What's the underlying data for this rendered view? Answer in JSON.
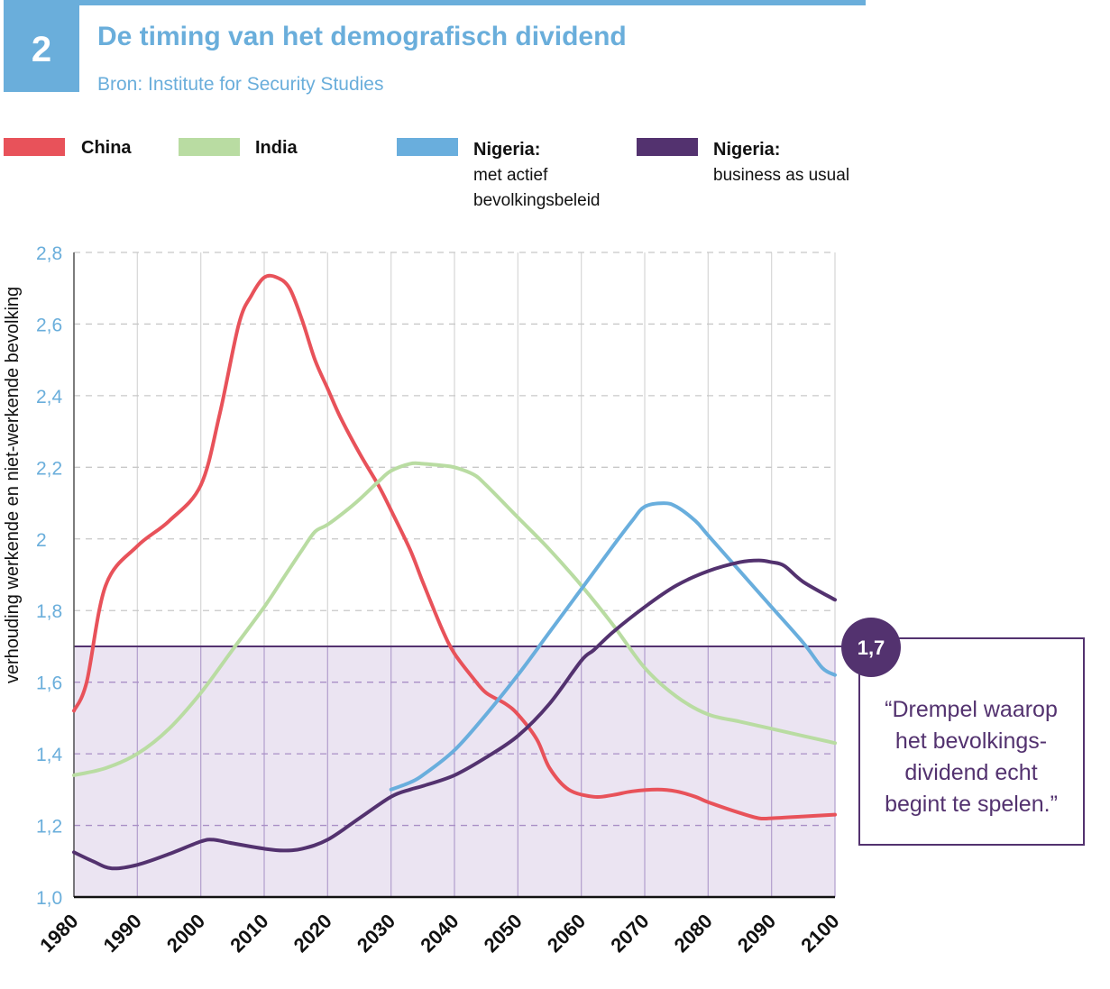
{
  "colors": {
    "title": "#6aaedb",
    "badge": "#6aaedb",
    "china": "#e8525a",
    "india": "#b9dca2",
    "nigeria_active": "#69aedd",
    "nigeria_bau": "#53326f",
    "shade": "#ebe4f2",
    "axis_text": "#6aaedb",
    "grid": "#c8c8c8",
    "vgrid": "#d9d9d9"
  },
  "header": {
    "badge_number": "2",
    "title": "De timing van het demografisch dividend",
    "source": "Bron: Institute for Security Studies"
  },
  "legend": [
    {
      "name": "China",
      "line1": "China",
      "line2": "",
      "line3": ""
    },
    {
      "name": "India",
      "line1": "India",
      "line2": "",
      "line3": ""
    },
    {
      "name": "Nigeria: met actief bevolkingsbeleid",
      "line1": "Nigeria:",
      "line2": "met actief",
      "line3": "bevolkingsbeleid"
    },
    {
      "name": "Nigeria: business as usual",
      "line1": "Nigeria:",
      "line2": "business as usual",
      "line3": ""
    }
  ],
  "threshold": {
    "value": 1.7,
    "label": "1,7",
    "quote": [
      "“Drempel waarop",
      "het bevolkings-",
      "dividend echt",
      "begint te spelen.”"
    ]
  },
  "chart_data": {
    "type": "line",
    "title": "De timing van het demografisch dividend",
    "xlabel": "",
    "ylabel": "verhouding werkende en niet-werkende bevolking",
    "xlim": [
      1980,
      2100
    ],
    "ylim": [
      1.0,
      2.8
    ],
    "x_ticks": [
      1980,
      1990,
      2000,
      2010,
      2020,
      2030,
      2040,
      2050,
      2060,
      2070,
      2080,
      2090,
      2100
    ],
    "x_tick_labels": [
      "1980",
      "1990",
      "2000",
      "2010",
      "2020",
      "2030",
      "2040",
      "2050",
      "2060",
      "2070",
      "2080",
      "2090",
      "2100"
    ],
    "y_ticks": [
      1.0,
      1.2,
      1.4,
      1.6,
      1.8,
      2.0,
      2.2,
      2.4,
      2.6,
      2.8
    ],
    "y_tick_labels": [
      "1,0",
      "1,2",
      "1,4",
      "1,6",
      "1,8",
      "2",
      "2,2",
      "2,4",
      "2,6",
      "2,8"
    ],
    "threshold": 1.7,
    "series": [
      {
        "name": "China",
        "color": "#e8525a",
        "x": [
          1980,
          1982,
          1985,
          1990,
          1995,
          2000,
          2003,
          2006,
          2008,
          2010,
          2012,
          2014,
          2016,
          2018,
          2020,
          2022,
          2025,
          2028,
          2030,
          2033,
          2035,
          2038,
          2040,
          2043,
          2045,
          2048,
          2050,
          2053,
          2055,
          2058,
          2062,
          2065,
          2068,
          2072,
          2075,
          2078,
          2080,
          2085,
          2088,
          2090,
          2095,
          2100
        ],
        "y": [
          1.52,
          1.6,
          1.87,
          1.98,
          2.05,
          2.15,
          2.35,
          2.6,
          2.68,
          2.73,
          2.73,
          2.7,
          2.61,
          2.5,
          2.42,
          2.34,
          2.24,
          2.15,
          2.08,
          1.97,
          1.88,
          1.75,
          1.68,
          1.61,
          1.57,
          1.54,
          1.51,
          1.44,
          1.36,
          1.3,
          1.28,
          1.285,
          1.295,
          1.3,
          1.295,
          1.28,
          1.265,
          1.235,
          1.22,
          1.22,
          1.225,
          1.23
        ]
      },
      {
        "name": "India",
        "color": "#b9dca2",
        "x": [
          1980,
          1985,
          1990,
          1995,
          2000,
          2005,
          2010,
          2013,
          2016,
          2018,
          2020,
          2023,
          2025,
          2028,
          2030,
          2033,
          2035,
          2038,
          2040,
          2043,
          2045,
          2050,
          2055,
          2060,
          2065,
          2070,
          2075,
          2080,
          2085,
          2090,
          2095,
          2100
        ],
        "y": [
          1.34,
          1.36,
          1.4,
          1.47,
          1.57,
          1.69,
          1.81,
          1.89,
          1.97,
          2.02,
          2.04,
          2.08,
          2.11,
          2.16,
          2.19,
          2.21,
          2.21,
          2.205,
          2.2,
          2.18,
          2.15,
          2.06,
          1.97,
          1.87,
          1.76,
          1.64,
          1.56,
          1.51,
          1.49,
          1.47,
          1.45,
          1.43
        ]
      },
      {
        "name": "Nigeria: met actief bevolkingsbeleid",
        "color": "#69aedd",
        "x": [
          2030,
          2033,
          2035,
          2040,
          2045,
          2050,
          2055,
          2060,
          2065,
          2068,
          2070,
          2073,
          2075,
          2078,
          2080,
          2085,
          2090,
          2095,
          2098,
          2100
        ],
        "y": [
          1.3,
          1.32,
          1.34,
          1.41,
          1.51,
          1.62,
          1.74,
          1.86,
          1.98,
          2.05,
          2.09,
          2.1,
          2.09,
          2.05,
          2.01,
          1.91,
          1.81,
          1.71,
          1.64,
          1.62
        ]
      },
      {
        "name": "Nigeria: business as usual",
        "color": "#53326f",
        "x": [
          1980,
          1983,
          1986,
          1990,
          1995,
          2000,
          2002,
          2005,
          2010,
          2013,
          2016,
          2020,
          2025,
          2030,
          2033,
          2035,
          2040,
          2045,
          2050,
          2055,
          2060,
          2062,
          2065,
          2070,
          2075,
          2080,
          2085,
          2088,
          2090,
          2092,
          2095,
          2100
        ],
        "y": [
          1.125,
          1.1,
          1.08,
          1.09,
          1.12,
          1.155,
          1.16,
          1.15,
          1.135,
          1.13,
          1.135,
          1.16,
          1.22,
          1.28,
          1.3,
          1.31,
          1.34,
          1.39,
          1.45,
          1.54,
          1.66,
          1.69,
          1.74,
          1.81,
          1.87,
          1.91,
          1.935,
          1.94,
          1.935,
          1.925,
          1.88,
          1.83
        ]
      }
    ]
  }
}
